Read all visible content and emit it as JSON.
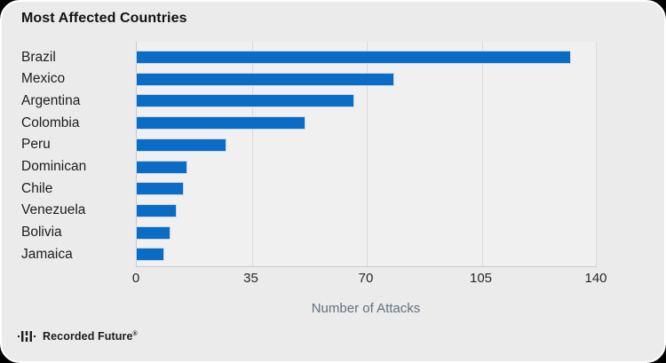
{
  "title": "Most Affected Countries",
  "chart_data": {
    "type": "bar",
    "orientation": "horizontal",
    "title": "Most Affected Countries",
    "categories": [
      "Brazil",
      "Mexico",
      "Argentina",
      "Colombia",
      "Peru",
      "Dominican",
      "Chile",
      "Venezuela",
      "Bolivia",
      "Jamaica"
    ],
    "values": [
      132,
      78,
      66,
      51,
      27,
      15,
      14,
      12,
      10,
      8
    ],
    "xlabel": "Number of Attacks",
    "ylabel": "",
    "x_ticks": [
      0,
      35,
      70,
      105,
      140
    ],
    "xlim": [
      0,
      140
    ],
    "grid": true,
    "legend": "none",
    "bar_color": "#0a6cc4"
  },
  "footer": {
    "brand": "Recorded Future",
    "registered": "®"
  },
  "colors": {
    "card_background": "#ebebeb",
    "plot_background": "#f0f0f0",
    "bar": "#0a6cc4",
    "gridline": "#d9dadb",
    "axis_label": "#65707d",
    "text": "#1c1d1e"
  }
}
